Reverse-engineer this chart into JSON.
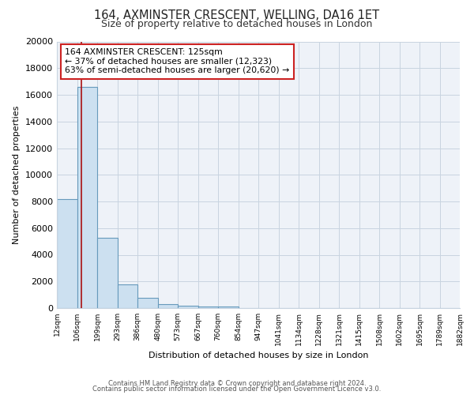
{
  "title": "164, AXMINSTER CRESCENT, WELLING, DA16 1ET",
  "subtitle": "Size of property relative to detached houses in London",
  "xlabel": "Distribution of detached houses by size in London",
  "ylabel": "Number of detached properties",
  "bar_edges": [
    12,
    106,
    199,
    293,
    386,
    480,
    573,
    667,
    760,
    854,
    947,
    1041,
    1134,
    1228,
    1321,
    1415,
    1508,
    1602,
    1695,
    1789,
    1882
  ],
  "bar_heights": [
    8200,
    16600,
    5300,
    1800,
    750,
    300,
    200,
    100,
    100,
    0,
    0,
    0,
    0,
    0,
    0,
    0,
    0,
    0,
    0,
    0
  ],
  "bar_color": "#cce0f0",
  "bar_edge_color": "#6699bb",
  "vline_x": 125,
  "vline_color": "#aa1111",
  "annotation_title": "164 AXMINSTER CRESCENT: 125sqm",
  "annotation_line1": "← 37% of detached houses are smaller (12,323)",
  "annotation_line2": "63% of semi-detached houses are larger (20,620) →",
  "ylim": [
    0,
    20000
  ],
  "yticks": [
    0,
    2000,
    4000,
    6000,
    8000,
    10000,
    12000,
    14000,
    16000,
    18000,
    20000
  ],
  "xtick_labels": [
    "12sqm",
    "106sqm",
    "199sqm",
    "293sqm",
    "386sqm",
    "480sqm",
    "573sqm",
    "667sqm",
    "760sqm",
    "854sqm",
    "947sqm",
    "1041sqm",
    "1134sqm",
    "1228sqm",
    "1321sqm",
    "1415sqm",
    "1508sqm",
    "1602sqm",
    "1695sqm",
    "1789sqm",
    "1882sqm"
  ],
  "footer1": "Contains HM Land Registry data © Crown copyright and database right 2024.",
  "footer2": "Contains public sector information licensed under the Open Government Licence v3.0.",
  "fig_bg_color": "#ffffff",
  "plot_bg_color": "#eef2f8",
  "grid_color": "#c8d4e0",
  "title_fontsize": 10.5,
  "subtitle_fontsize": 9,
  "ylabel_fontsize": 8,
  "xlabel_fontsize": 8,
  "ytick_fontsize": 8,
  "xtick_fontsize": 6.5,
  "footer_fontsize": 6
}
